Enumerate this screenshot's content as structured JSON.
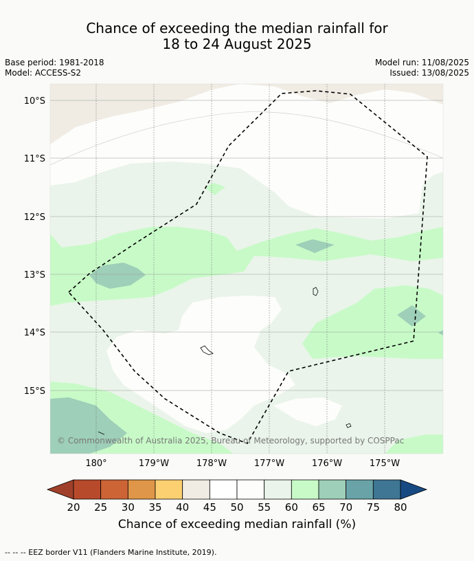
{
  "title_line1": "Chance of exceeding the median rainfall for",
  "title_line2": "18 to 24 August 2025",
  "base_period": "Base period: 1981-2018",
  "model": "Model: ACCESS-S2",
  "model_run": "Model run: 11/08/2025",
  "issued": "Issued: 13/08/2025",
  "copyright": "© Commonwealth of Australia 2025, Bureau of Meteorology, supported by COSPPac",
  "lat_labels": [
    "10°S",
    "11°S",
    "12°S",
    "13°S",
    "14°S",
    "15°S"
  ],
  "lon_labels": [
    "180°",
    "179°W",
    "178°W",
    "177°W",
    "176°W",
    "175°W"
  ],
  "colorbar": {
    "label": "Chance of exceeding median rainfall (%)",
    "ticks": [
      "20",
      "25",
      "30",
      "35",
      "40",
      "45",
      "50",
      "55",
      "60",
      "65",
      "70",
      "75",
      "80"
    ],
    "colors": [
      "#a0402a",
      "#b84a2c",
      "#cc6436",
      "#e09648",
      "#fcd070",
      "#f0ece4",
      "#ffffff",
      "#fdfdfb",
      "#eaf4ea",
      "#c8fac8",
      "#9ecfb8",
      "#69a3a8",
      "#3e7694",
      "#174a82"
    ]
  },
  "footnote": "--  --  -- EEZ border V11 (Flanders Marine Institute, 2019)."
}
